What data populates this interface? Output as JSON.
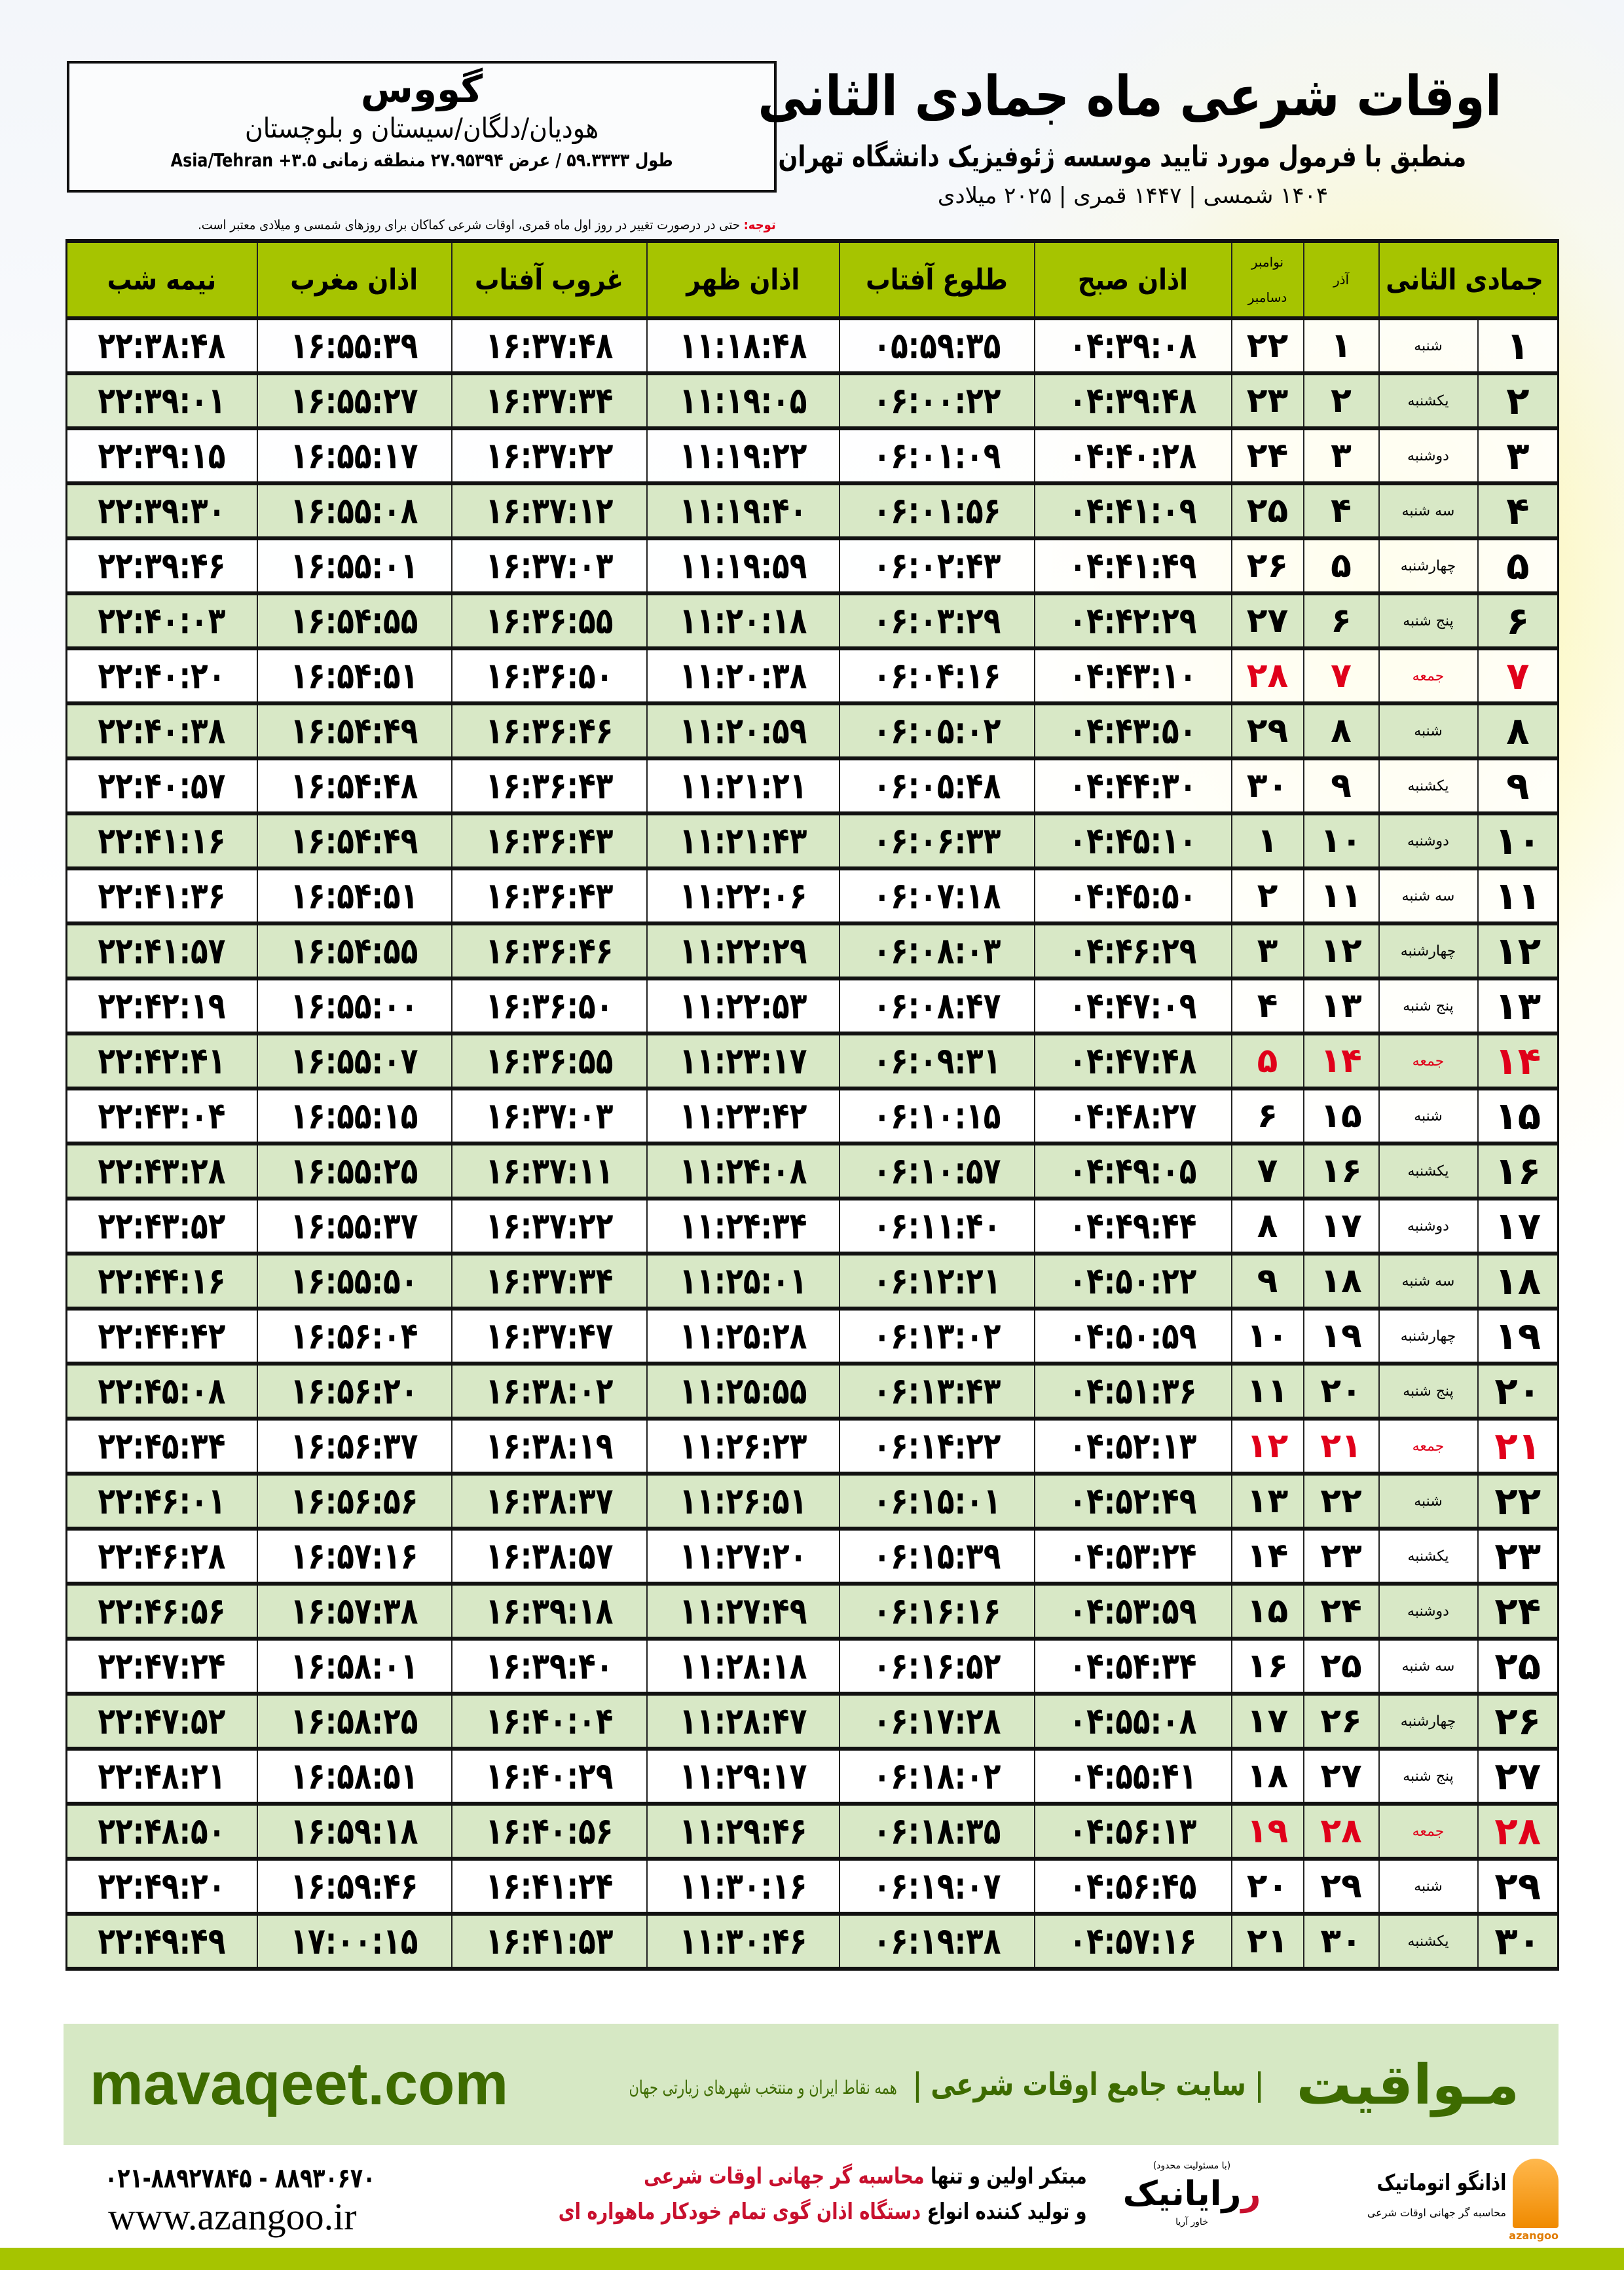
{
  "header": {
    "title": "اوقات شرعی ماه جمادی الثانی",
    "subtitle": "منطبق با فرمول مورد تایید موسسه ژئوفیزیک دانشگاه تهران",
    "dates": "۱۴۰۴ شمسی | ۱۴۴۷ قمری | ۲۰۲۵ میلادی"
  },
  "location": {
    "city": "گووس",
    "region": "هودیان/دلگان/سیستان و بلوچستان",
    "coords": "طول ۵۹.۳۳۳۳ / عرض ۲۷.۹۵۳۹۴ منطقه زمانی ۳.۵+ Asia/Tehran"
  },
  "note": {
    "label": "توجه:",
    "text": " حتی در درصورت تغییر در روز اول ماه قمری، اوقات شرعی کماکان برای روزهای شمسی و میلادی معتبر است."
  },
  "colors": {
    "header_green": "#a6c400",
    "row_green": "#d8e8c6",
    "holiday_red": "#e0001a",
    "brand_green": "#3d6b00"
  },
  "table": {
    "columns": {
      "day": "جمادی الثانی",
      "azar": "آذر",
      "novdec_top": "نوامبر",
      "novdec_bottom": "دسامبر",
      "sobh": "اذان صبح",
      "tolu": "طلوع آفتاب",
      "zohr": "اذان ظهر",
      "ghorub": "غروب آفتاب",
      "maghreb": "اذان مغرب",
      "nimeshab": "نیمه شب"
    },
    "rows": [
      [
        "۱",
        "شنبه",
        "۱",
        "۲۲",
        "۰۴:۳۹:۰۸",
        "۰۵:۵۹:۳۵",
        "۱۱:۱۸:۴۸",
        "۱۶:۳۷:۴۸",
        "۱۶:۵۵:۳۹",
        "۲۲:۳۸:۴۸"
      ],
      [
        "۲",
        "یکشنبه",
        "۲",
        "۲۳",
        "۰۴:۳۹:۴۸",
        "۰۶:۰۰:۲۲",
        "۱۱:۱۹:۰۵",
        "۱۶:۳۷:۳۴",
        "۱۶:۵۵:۲۷",
        "۲۲:۳۹:۰۱"
      ],
      [
        "۳",
        "دوشنبه",
        "۳",
        "۲۴",
        "۰۴:۴۰:۲۸",
        "۰۶:۰۱:۰۹",
        "۱۱:۱۹:۲۲",
        "۱۶:۳۷:۲۲",
        "۱۶:۵۵:۱۷",
        "۲۲:۳۹:۱۵"
      ],
      [
        "۴",
        "سه شنبه",
        "۴",
        "۲۵",
        "۰۴:۴۱:۰۹",
        "۰۶:۰۱:۵۶",
        "۱۱:۱۹:۴۰",
        "۱۶:۳۷:۱۲",
        "۱۶:۵۵:۰۸",
        "۲۲:۳۹:۳۰"
      ],
      [
        "۵",
        "چهارشنبه",
        "۵",
        "۲۶",
        "۰۴:۴۱:۴۹",
        "۰۶:۰۲:۴۳",
        "۱۱:۱۹:۵۹",
        "۱۶:۳۷:۰۳",
        "۱۶:۵۵:۰۱",
        "۲۲:۳۹:۴۶"
      ],
      [
        "۶",
        "پنج شنبه",
        "۶",
        "۲۷",
        "۰۴:۴۲:۲۹",
        "۰۶:۰۳:۲۹",
        "۱۱:۲۰:۱۸",
        "۱۶:۳۶:۵۵",
        "۱۶:۵۴:۵۵",
        "۲۲:۴۰:۰۳"
      ],
      [
        "۷",
        "جمعه",
        "۷",
        "۲۸",
        "۰۴:۴۳:۱۰",
        "۰۶:۰۴:۱۶",
        "۱۱:۲۰:۳۸",
        "۱۶:۳۶:۵۰",
        "۱۶:۵۴:۵۱",
        "۲۲:۴۰:۲۰"
      ],
      [
        "۸",
        "شنبه",
        "۸",
        "۲۹",
        "۰۴:۴۳:۵۰",
        "۰۶:۰۵:۰۲",
        "۱۱:۲۰:۵۹",
        "۱۶:۳۶:۴۶",
        "۱۶:۵۴:۴۹",
        "۲۲:۴۰:۳۸"
      ],
      [
        "۹",
        "یکشنبه",
        "۹",
        "۳۰",
        "۰۴:۴۴:۳۰",
        "۰۶:۰۵:۴۸",
        "۱۱:۲۱:۲۱",
        "۱۶:۳۶:۴۳",
        "۱۶:۵۴:۴۸",
        "۲۲:۴۰:۵۷"
      ],
      [
        "۱۰",
        "دوشنبه",
        "۱۰",
        "۱",
        "۰۴:۴۵:۱۰",
        "۰۶:۰۶:۳۳",
        "۱۱:۲۱:۴۳",
        "۱۶:۳۶:۴۳",
        "۱۶:۵۴:۴۹",
        "۲۲:۴۱:۱۶"
      ],
      [
        "۱۱",
        "سه شنبه",
        "۱۱",
        "۲",
        "۰۴:۴۵:۵۰",
        "۰۶:۰۷:۱۸",
        "۱۱:۲۲:۰۶",
        "۱۶:۳۶:۴۳",
        "۱۶:۵۴:۵۱",
        "۲۲:۴۱:۳۶"
      ],
      [
        "۱۲",
        "چهارشنبه",
        "۱۲",
        "۳",
        "۰۴:۴۶:۲۹",
        "۰۶:۰۸:۰۳",
        "۱۱:۲۲:۲۹",
        "۱۶:۳۶:۴۶",
        "۱۶:۵۴:۵۵",
        "۲۲:۴۱:۵۷"
      ],
      [
        "۱۳",
        "پنج شنبه",
        "۱۳",
        "۴",
        "۰۴:۴۷:۰۹",
        "۰۶:۰۸:۴۷",
        "۱۱:۲۲:۵۳",
        "۱۶:۳۶:۵۰",
        "۱۶:۵۵:۰۰",
        "۲۲:۴۲:۱۹"
      ],
      [
        "۱۴",
        "جمعه",
        "۱۴",
        "۵",
        "۰۴:۴۷:۴۸",
        "۰۶:۰۹:۳۱",
        "۱۱:۲۳:۱۷",
        "۱۶:۳۶:۵۵",
        "۱۶:۵۵:۰۷",
        "۲۲:۴۲:۴۱"
      ],
      [
        "۱۵",
        "شنبه",
        "۱۵",
        "۶",
        "۰۴:۴۸:۲۷",
        "۰۶:۱۰:۱۵",
        "۱۱:۲۳:۴۲",
        "۱۶:۳۷:۰۳",
        "۱۶:۵۵:۱۵",
        "۲۲:۴۳:۰۴"
      ],
      [
        "۱۶",
        "یکشنبه",
        "۱۶",
        "۷",
        "۰۴:۴۹:۰۵",
        "۰۶:۱۰:۵۷",
        "۱۱:۲۴:۰۸",
        "۱۶:۳۷:۱۱",
        "۱۶:۵۵:۲۵",
        "۲۲:۴۳:۲۸"
      ],
      [
        "۱۷",
        "دوشنبه",
        "۱۷",
        "۸",
        "۰۴:۴۹:۴۴",
        "۰۶:۱۱:۴۰",
        "۱۱:۲۴:۳۴",
        "۱۶:۳۷:۲۲",
        "۱۶:۵۵:۳۷",
        "۲۲:۴۳:۵۲"
      ],
      [
        "۱۸",
        "سه شنبه",
        "۱۸",
        "۹",
        "۰۴:۵۰:۲۲",
        "۰۶:۱۲:۲۱",
        "۱۱:۲۵:۰۱",
        "۱۶:۳۷:۳۴",
        "۱۶:۵۵:۵۰",
        "۲۲:۴۴:۱۶"
      ],
      [
        "۱۹",
        "چهارشنبه",
        "۱۹",
        "۱۰",
        "۰۴:۵۰:۵۹",
        "۰۶:۱۳:۰۲",
        "۱۱:۲۵:۲۸",
        "۱۶:۳۷:۴۷",
        "۱۶:۵۶:۰۴",
        "۲۲:۴۴:۴۲"
      ],
      [
        "۲۰",
        "پنج شنبه",
        "۲۰",
        "۱۱",
        "۰۴:۵۱:۳۶",
        "۰۶:۱۳:۴۳",
        "۱۱:۲۵:۵۵",
        "۱۶:۳۸:۰۲",
        "۱۶:۵۶:۲۰",
        "۲۲:۴۵:۰۸"
      ],
      [
        "۲۱",
        "جمعه",
        "۲۱",
        "۱۲",
        "۰۴:۵۲:۱۳",
        "۰۶:۱۴:۲۲",
        "۱۱:۲۶:۲۳",
        "۱۶:۳۸:۱۹",
        "۱۶:۵۶:۳۷",
        "۲۲:۴۵:۳۴"
      ],
      [
        "۲۲",
        "شنبه",
        "۲۲",
        "۱۳",
        "۰۴:۵۲:۴۹",
        "۰۶:۱۵:۰۱",
        "۱۱:۲۶:۵۱",
        "۱۶:۳۸:۳۷",
        "۱۶:۵۶:۵۶",
        "۲۲:۴۶:۰۱"
      ],
      [
        "۲۳",
        "یکشنبه",
        "۲۳",
        "۱۴",
        "۰۴:۵۳:۲۴",
        "۰۶:۱۵:۳۹",
        "۱۱:۲۷:۲۰",
        "۱۶:۳۸:۵۷",
        "۱۶:۵۷:۱۶",
        "۲۲:۴۶:۲۸"
      ],
      [
        "۲۴",
        "دوشنبه",
        "۲۴",
        "۱۵",
        "۰۴:۵۳:۵۹",
        "۰۶:۱۶:۱۶",
        "۱۱:۲۷:۴۹",
        "۱۶:۳۹:۱۸",
        "۱۶:۵۷:۳۸",
        "۲۲:۴۶:۵۶"
      ],
      [
        "۲۵",
        "سه شنبه",
        "۲۵",
        "۱۶",
        "۰۴:۵۴:۳۴",
        "۰۶:۱۶:۵۲",
        "۱۱:۲۸:۱۸",
        "۱۶:۳۹:۴۰",
        "۱۶:۵۸:۰۱",
        "۲۲:۴۷:۲۴"
      ],
      [
        "۲۶",
        "چهارشنبه",
        "۲۶",
        "۱۷",
        "۰۴:۵۵:۰۸",
        "۰۶:۱۷:۲۸",
        "۱۱:۲۸:۴۷",
        "۱۶:۴۰:۰۴",
        "۱۶:۵۸:۲۵",
        "۲۲:۴۷:۵۲"
      ],
      [
        "۲۷",
        "پنج شنبه",
        "۲۷",
        "۱۸",
        "۰۴:۵۵:۴۱",
        "۰۶:۱۸:۰۲",
        "۱۱:۲۹:۱۷",
        "۱۶:۴۰:۲۹",
        "۱۶:۵۸:۵۱",
        "۲۲:۴۸:۲۱"
      ],
      [
        "۲۸",
        "جمعه",
        "۲۸",
        "۱۹",
        "۰۴:۵۶:۱۳",
        "۰۶:۱۸:۳۵",
        "۱۱:۲۹:۴۶",
        "۱۶:۴۰:۵۶",
        "۱۶:۵۹:۱۸",
        "۲۲:۴۸:۵۰"
      ],
      [
        "۲۹",
        "شنبه",
        "۲۹",
        "۲۰",
        "۰۴:۵۶:۴۵",
        "۰۶:۱۹:۰۷",
        "۱۱:۳۰:۱۶",
        "۱۶:۴۱:۲۴",
        "۱۶:۵۹:۴۶",
        "۲۲:۴۹:۲۰"
      ],
      [
        "۳۰",
        "یکشنبه",
        "۳۰",
        "۲۱",
        "۰۴:۵۷:۱۶",
        "۰۶:۱۹:۳۸",
        "۱۱:۳۰:۴۶",
        "۱۶:۴۱:۵۳",
        "۱۷:۰۰:۱۵",
        "۲۲:۴۹:۴۹"
      ]
    ]
  },
  "banner": {
    "brand": "مـواقیت",
    "tagline": "| سایت جامع اوقات شرعی |",
    "tagline2": "همه نقاط ایران و منتخب شهرهای زیارتی جهان",
    "site": "mavaqeet.com"
  },
  "footer": {
    "phones": "۰۲۱-۸۸۹۲۷۸۴۵ - ۸۸۹۳۰۶۷۰",
    "website": "www.azangoo.ir",
    "promo_line1_a": "مبتکر اولین و تنها ",
    "promo_line1_b": "محاسبه گر جهانی اوقات شرعی",
    "promo_line2_a": "و تولید کننده انواع ",
    "promo_line2_b": "دستگاه اذان گوی تمام خودکار ماهواره ای",
    "logo_rayanik": "رایانیک",
    "logo_rayanik_sub": "خاور آریا",
    "logo_rayanik_note": "(با مسئولیت محدود)",
    "logo_azangoo": "اذانگو اتوماتیک",
    "logo_azangoo_sub": "محاسبه گر جهانی اوقات شرعی",
    "logo_azangoo_en": "azangoo"
  }
}
